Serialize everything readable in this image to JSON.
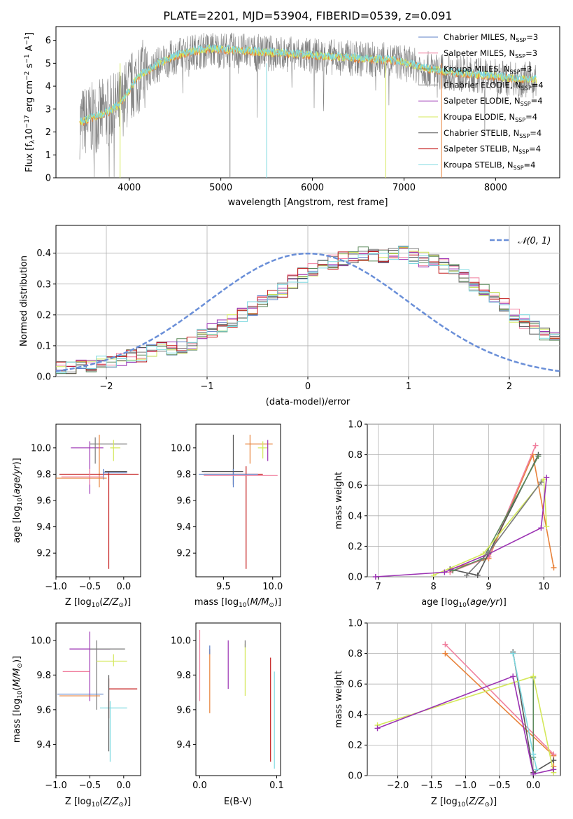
{
  "figure_title": "PLATE=2201, MJD=53904, FIBERID=0539, z=0.091",
  "colors": {
    "chabrier_miles": "#5b7fc7",
    "salpeter_miles": "#f07f9e",
    "kroupa_miles": "#5c8a5c",
    "chabrier_elodie": "#7a7a7a",
    "salpeter_elodie": "#9b32b3",
    "kroupa_elodie": "#d4e85a",
    "chabrier_stelib": "#555555",
    "salpeter_stelib": "#c41b1b",
    "kroupa_stelib": "#7fd9e0",
    "orange": "#e8823a",
    "normal_curve": "#6a8fd8"
  },
  "chart_data": [
    {
      "id": "spectrum",
      "type": "line",
      "xlabel": "wavelength [Angstrom, rest frame]",
      "ylabel": "Flux [f_λ 10^-17 erg cm^-2 s^-1 A^-1]",
      "xlim": [
        3200,
        8700
      ],
      "ylim": [
        0,
        6.6
      ],
      "xticks": [
        4000,
        5000,
        6000,
        7000,
        8000
      ],
      "yticks": [
        0,
        1,
        2,
        3,
        4,
        5,
        6
      ],
      "grid": false,
      "legend": [
        "Chabrier MILES, N_SSP=3",
        "Salpeter MILES, N_SSP=3",
        "Kroupa MILES, N_SSP=3",
        "Chabrier ELODIE, N_SSP=4",
        "Salpeter ELODIE, N_SSP=4",
        "Kroupa ELODIE, N_SSP=4",
        "Chabrier STELIB, N_SSP=4",
        "Salpeter STELIB, N_SSP=4",
        "Kroupa STELIB, N_SSP=4"
      ],
      "legend_placement": "right",
      "series": [
        {
          "x": [
            3460,
            3600,
            3800,
            3900,
            4000,
            4100,
            4300,
            4500,
            4700,
            4900,
            5100,
            5300,
            5500,
            5700,
            5900,
            6100,
            6300,
            6500,
            6700,
            6900,
            7100,
            7300,
            7500,
            7700,
            7900,
            8100,
            8300,
            8450
          ],
          "y": [
            2.4,
            2.6,
            2.9,
            3.2,
            3.8,
            4.4,
            4.9,
            5.3,
            5.5,
            5.6,
            5.55,
            5.5,
            5.45,
            5.4,
            5.35,
            5.3,
            5.25,
            5.2,
            5.15,
            5.1,
            4.9,
            4.7,
            4.6,
            4.5,
            4.45,
            4.35,
            4.3,
            4.25
          ]
        }
      ]
    },
    {
      "id": "residuals",
      "type": "bar",
      "xlabel": "(data-model)/error",
      "ylabel": "Normed distribution",
      "xlim": [
        -2.5,
        2.5
      ],
      "ylim": [
        0,
        0.49
      ],
      "xticks": [
        -2,
        -1,
        0,
        1,
        2
      ],
      "yticks": [
        0.0,
        0.1,
        0.2,
        0.3,
        0.4
      ],
      "grid": true,
      "legend": [
        "𝒩(0, 1)"
      ],
      "legend_placement": "top-right",
      "bin_width": 0.1,
      "bin_start": -2.5,
      "series": [
        {
          "values": [
            0.03,
            0.03,
            0.03,
            0.04,
            0.05,
            0.05,
            0.06,
            0.07,
            0.07,
            0.08,
            0.09,
            0.09,
            0.1,
            0.11,
            0.13,
            0.15,
            0.16,
            0.18,
            0.2,
            0.22,
            0.24,
            0.26,
            0.28,
            0.31,
            0.33,
            0.35,
            0.36,
            0.37,
            0.38,
            0.39,
            0.4,
            0.39,
            0.39,
            0.4,
            0.4,
            0.39,
            0.38,
            0.37,
            0.36,
            0.35,
            0.33,
            0.3,
            0.28,
            0.25,
            0.23,
            0.2,
            0.18,
            0.16,
            0.14,
            0.12,
            0.1,
            0.09,
            0.08,
            0.07,
            0.06,
            0.05,
            0.05,
            0.04,
            0.04,
            0.03,
            0.03
          ]
        }
      ],
      "normal_curve": {
        "mean": 0,
        "std": 1
      }
    },
    {
      "id": "age_vs_Z",
      "type": "scatter",
      "xlabel": "Z [log10(Z/Z⊙)]",
      "ylabel": "age [log10(age/yr)]",
      "xlim": [
        -1.0,
        0.25
      ],
      "ylim": [
        9.02,
        10.18
      ],
      "xticks": [
        -1.0,
        -0.5,
        0.0
      ],
      "yticks": [
        9.2,
        9.4,
        9.6,
        9.8,
        10.0
      ],
      "grid": false
    },
    {
      "id": "age_vs_mass",
      "type": "scatter",
      "xlabel": "mass [log10(M/M⊙)]",
      "ylabel": "",
      "xlim": [
        9.22,
        10.08
      ],
      "ylim": [
        9.02,
        10.18
      ],
      "xticks": [
        9.5,
        10.0
      ],
      "yticks": [
        9.2,
        9.4,
        9.6,
        9.8,
        10.0
      ],
      "grid": false
    },
    {
      "id": "massweight_vs_age",
      "type": "line",
      "xlabel": "age [log10(age/yr)]",
      "ylabel": "mass weight",
      "xlim": [
        6.8,
        10.3
      ],
      "ylim": [
        0.0,
        1.0
      ],
      "xticks": [
        7,
        8,
        9,
        10
      ],
      "yticks": [
        0.0,
        0.2,
        0.4,
        0.6,
        0.8,
        1.0
      ],
      "grid": true
    },
    {
      "id": "mass_vs_Z",
      "type": "scatter",
      "xlabel": "Z [log10(Z/Z⊙)]",
      "ylabel": "mass [log10(M/M⊙)]",
      "xlim": [
        -1.0,
        0.25
      ],
      "ylim": [
        9.22,
        10.1
      ],
      "xticks": [
        -1.0,
        -0.5,
        0.0
      ],
      "yticks": [
        9.4,
        9.6,
        9.8,
        10.0
      ],
      "grid": false
    },
    {
      "id": "mass_vs_ebv",
      "type": "scatter",
      "xlabel": "E(B-V)",
      "ylabel": "",
      "xlim": [
        -0.005,
        0.105
      ],
      "ylim": [
        9.22,
        10.1
      ],
      "xticks": [
        0.0,
        0.1
      ],
      "yticks": [
        9.4,
        9.6,
        9.8,
        10.0
      ],
      "grid": false
    },
    {
      "id": "massweight_vs_Z",
      "type": "line",
      "xlabel": "Z [log10(Z/Z⊙)]",
      "ylabel": "mass weight",
      "xlim": [
        -2.45,
        0.4
      ],
      "ylim": [
        0.0,
        1.0
      ],
      "xticks": [
        -2.0,
        -1.5,
        -1.0,
        -0.5,
        0.0
      ],
      "yticks": [
        0.0,
        0.2,
        0.4,
        0.6,
        0.8,
        1.0
      ],
      "grid": true
    }
  ],
  "tick_labels": {
    "spectrum_x": [
      "4000",
      "5000",
      "6000",
      "7000",
      "8000"
    ],
    "spectrum_y": [
      "0",
      "1",
      "2",
      "3",
      "4",
      "5",
      "6"
    ],
    "resid_x": [
      "−2",
      "−1",
      "0",
      "1",
      "2"
    ],
    "resid_y": [
      "0.0",
      "0.1",
      "0.2",
      "0.3",
      "0.4"
    ],
    "z_x": [
      "−1.0",
      "−0.5",
      "0.0"
    ],
    "age_y": [
      "9.2",
      "9.4",
      "9.6",
      "9.8",
      "10.0"
    ],
    "mass_x": [
      "9.5",
      "10.0"
    ],
    "mw_y": [
      "0.0",
      "0.2",
      "0.4",
      "0.6",
      "0.8",
      "1.0"
    ],
    "ageaxis_x": [
      "7",
      "8",
      "9",
      "10"
    ],
    "massy": [
      "9.4",
      "9.6",
      "9.8",
      "10.0"
    ],
    "ebv_x": [
      "0.0",
      "0.1"
    ],
    "zw_x": [
      "−2.0",
      "−1.5",
      "−1.0",
      "−0.5",
      "0.0"
    ]
  }
}
